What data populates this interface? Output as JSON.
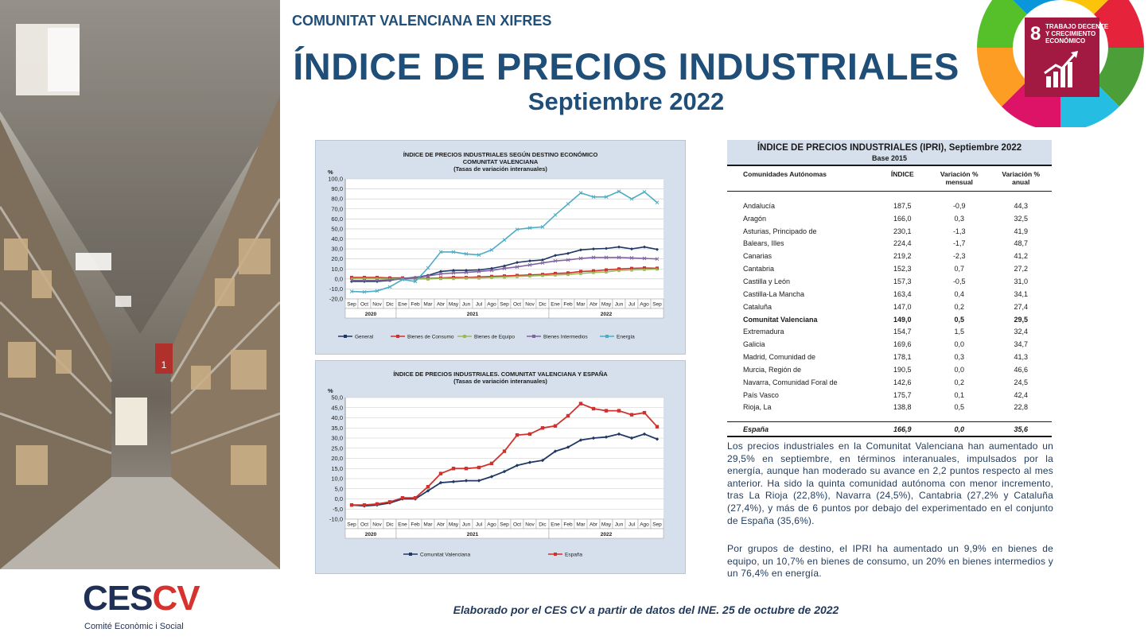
{
  "header": {
    "kicker": "COMUNITAT VALENCIANA EN XIFRES",
    "title": "ÍNDICE DE PRECIOS INDUSTRIALES",
    "subtitle": "Septiembre  2022"
  },
  "sdg": {
    "number": "8",
    "line1": "TRABAJO DECENTE",
    "line2": "Y CRECIMIENTO",
    "line3": "ECONÓMICO",
    "tile_color": "#a21942",
    "icon": "growth-chart-icon"
  },
  "colors": {
    "title_blue": "#1f4e79",
    "panel_bg": "#d6e0ec",
    "general": "#1f3864",
    "consumo": "#d0312d",
    "equipo": "#9bbb59",
    "intermedios": "#8064a2",
    "energia": "#4bacc6",
    "cv": "#1f3864",
    "espana": "#d0312d"
  },
  "chart_data": [
    {
      "type": "line",
      "title": "ÍNDICE DE PRECIOS INDUSTRIALES SEGÚN DESTINO ECONÓMICO",
      "subtitle1": "COMUNITAT VALENCIANA",
      "subtitle2": "(Tasas de variación interanuales)",
      "ylabel": "%",
      "ylim": [
        -20,
        100
      ],
      "ytick_step": 10,
      "yticks": [
        "-20,0",
        "-10,0",
        "0,0",
        "10,0",
        "20,0",
        "30,0",
        "40,0",
        "50,0",
        "60,0",
        "70,0",
        "80,0",
        "90,0",
        "100,0"
      ],
      "categories": [
        "Sep",
        "Oct",
        "Nov",
        "Dic",
        "Ene",
        "Feb",
        "Mar",
        "Abr",
        "May",
        "Jun",
        "Jul",
        "Ago",
        "Sep",
        "Oct",
        "Nov",
        "Dic",
        "Ene",
        "Feb",
        "Mar",
        "Abr",
        "May",
        "Jun",
        "Jul",
        "Ago",
        "Sep"
      ],
      "year_labels": [
        {
          "label": "2020",
          "start": 0,
          "end": 3
        },
        {
          "label": "2021",
          "start": 4,
          "end": 15
        },
        {
          "label": "2022",
          "start": 16,
          "end": 24
        }
      ],
      "legend_position": "bottom",
      "grid": true,
      "series": [
        {
          "name": "General",
          "color": "#1f3864",
          "values": [
            -2.5,
            -2.5,
            -2.5,
            -1.5,
            0.5,
            1.5,
            3.5,
            7.5,
            8.5,
            8.5,
            9,
            10.5,
            13,
            16.5,
            18,
            19,
            23.5,
            25.5,
            29,
            30,
            30.5,
            32,
            30,
            32,
            29.5
          ]
        },
        {
          "name": "Bienes de Consumo",
          "color": "#d0312d",
          "values": [
            1.5,
            1.5,
            1.5,
            1,
            1,
            0.5,
            0.5,
            1,
            1.5,
            1.5,
            2,
            2.5,
            3,
            3.5,
            4,
            4.5,
            5.5,
            6,
            7.5,
            8,
            9,
            10,
            10.5,
            11,
            10.7
          ]
        },
        {
          "name": "Bienes de Equipo",
          "color": "#9bbb59",
          "values": [
            0.5,
            0.5,
            0.5,
            0,
            0,
            0,
            0,
            0.5,
            0.5,
            1,
            1,
            1.5,
            2,
            2.5,
            3,
            3.5,
            4,
            4.5,
            5.5,
            6.5,
            7,
            8.5,
            9,
            9.5,
            9.9
          ]
        },
        {
          "name": "Bienes Intermedios",
          "color": "#8064a2",
          "values": [
            -1.5,
            -1.5,
            -1.5,
            -1,
            0,
            1,
            3,
            5,
            6,
            6.5,
            7.5,
            8.5,
            10.5,
            12,
            14,
            16,
            18,
            19,
            20.5,
            21.5,
            21.5,
            21.5,
            21,
            20.5,
            20
          ]
        },
        {
          "name": "Energía",
          "color": "#4bacc6",
          "values": [
            -12.5,
            -13,
            -12,
            -8,
            -0.5,
            -2.5,
            11,
            27,
            27,
            25,
            24,
            29,
            39,
            49.5,
            51,
            52,
            64,
            75,
            86,
            82,
            82,
            87.5,
            80,
            87,
            76.4
          ]
        }
      ]
    },
    {
      "type": "line",
      "title": "ÍNDICE DE PRECIOS INDUSTRIALES. COMUNITAT VALENCIANA Y ESPAÑA",
      "subtitle1": "(Tasas de variación interanuales)",
      "ylabel": "%",
      "ylim": [
        -10,
        50
      ],
      "ytick_step": 5,
      "yticks": [
        "-10,0",
        "-5,0",
        "0,0",
        "5,0",
        "10,0",
        "15,0",
        "20,0",
        "25,0",
        "30,0",
        "35,0",
        "40,0",
        "45,0",
        "50,0"
      ],
      "categories": [
        "Sep",
        "Oct",
        "Nov",
        "Dic",
        "Ene",
        "Feb",
        "Mar",
        "Abr",
        "May",
        "Jun",
        "Jul",
        "Ago",
        "Sep",
        "Oct",
        "Nov",
        "Dic",
        "Ene",
        "Feb",
        "Mar",
        "Abr",
        "May",
        "Jun",
        "Jul",
        "Ago",
        "Sep"
      ],
      "year_labels": [
        {
          "label": "2020",
          "start": 0,
          "end": 3
        },
        {
          "label": "2021",
          "start": 4,
          "end": 15
        },
        {
          "label": "2022",
          "start": 16,
          "end": 24
        }
      ],
      "legend_position": "bottom",
      "grid": true,
      "series": [
        {
          "name": "Comunitat Valenciana",
          "color": "#1f3864",
          "values": [
            -3,
            -3.5,
            -3,
            -2,
            0,
            0,
            4,
            8,
            8.5,
            9,
            9,
            11,
            13.5,
            16.5,
            18,
            19,
            23.5,
            25.5,
            29,
            30,
            30.5,
            32,
            30,
            32,
            29.5
          ]
        },
        {
          "name": "España",
          "color": "#d0312d",
          "values": [
            -3,
            -3,
            -2.5,
            -1.5,
            0.5,
            0.5,
            6,
            12.5,
            15,
            15,
            15.5,
            17.5,
            23.5,
            31.5,
            32,
            35,
            36,
            41,
            47,
            44.5,
            43.5,
            43.5,
            41.5,
            42.5,
            35.6
          ]
        }
      ]
    }
  ],
  "table": {
    "title": "ÍNDICE DE PRECIOS INDUSTRIALES (IPRI), Septiembre 2022",
    "base": "Base 2015",
    "headers": {
      "region": "Comunidades Autónomas",
      "index": "ÍNDICE",
      "monthly_1": "Variación %",
      "monthly_2": "mensual",
      "annual_1": "Variación %",
      "annual_2": "anual"
    },
    "rows": [
      {
        "name": "Andalucía",
        "index": "187,5",
        "monthly": "-0,9",
        "annual": "44,3"
      },
      {
        "name": "Aragón",
        "index": "166,0",
        "monthly": "0,3",
        "annual": "32,5"
      },
      {
        "name": "Asturias, Principado de",
        "index": "230,1",
        "monthly": "-1,3",
        "annual": "41,9"
      },
      {
        "name": "Balears, Illes",
        "index": "224,4",
        "monthly": "-1,7",
        "annual": "48,7"
      },
      {
        "name": "Canarias",
        "index": "219,2",
        "monthly": "-2,3",
        "annual": "41,2"
      },
      {
        "name": "Cantabria",
        "index": "152,3",
        "monthly": "0,7",
        "annual": "27,2"
      },
      {
        "name": "Castilla y León",
        "index": "157,3",
        "monthly": "-0,5",
        "annual": "31,0"
      },
      {
        "name": "Castilla-La Mancha",
        "index": "163,4",
        "monthly": "0,4",
        "annual": "34,1"
      },
      {
        "name": "Cataluña",
        "index": "147,0",
        "monthly": "0,2",
        "annual": "27,4"
      },
      {
        "name": "Comunitat Valenciana",
        "index": "149,0",
        "monthly": "0,5",
        "annual": "29,5"
      },
      {
        "name": "Extremadura",
        "index": "154,7",
        "monthly": "1,5",
        "annual": "32,4"
      },
      {
        "name": "Galicia",
        "index": "169,6",
        "monthly": "0,0",
        "annual": "34,7"
      },
      {
        "name": "Madrid, Comunidad de",
        "index": "178,1",
        "monthly": "0,3",
        "annual": "41,3"
      },
      {
        "name": "Murcia, Región de",
        "index": "190,5",
        "monthly": "0,0",
        "annual": "46,6"
      },
      {
        "name": "Navarra, Comunidad Foral de",
        "index": "142,6",
        "monthly": "0,2",
        "annual": "24,5"
      },
      {
        "name": "País Vasco",
        "index": "175,7",
        "monthly": "0,1",
        "annual": "42,4"
      },
      {
        "name": "Rioja, La",
        "index": "138,8",
        "monthly": "0,5",
        "annual": "22,8"
      }
    ],
    "total": {
      "name": "España",
      "index": "166,9",
      "monthly": "0,0",
      "annual": "35,6"
    }
  },
  "text": {
    "p1": "Los precios industriales en la Comunitat Valenciana han aumentado un 29,5% en septiembre, en términos interanuales, impulsados por la energía, aunque han moderado su avance en 2,2 puntos respecto al mes anterior. Ha sido la quinta comunidad autónoma con menor incremento, tras La Rioja (22,8%), Navarra (24,5%), Cantabria (27,2% y Cataluña (27,4%), y más de 6 puntos por debajo del experimentado en el conjunto de España (35,6%).",
    "p2": "Por grupos de destino, el IPRI ha aumentado un 9,9% en bienes de equipo, un 10,7% en bienes de consumo, un 20% en bienes intermedios y un 76,4% en energía."
  },
  "footer": {
    "source": "Elaborado por el CES CV a partir de datos del INE. 25 de octubre de 2022",
    "logo_ces": "CES",
    "logo_cv": "CV",
    "logo_sub": "Comité Econòmic i Social"
  }
}
